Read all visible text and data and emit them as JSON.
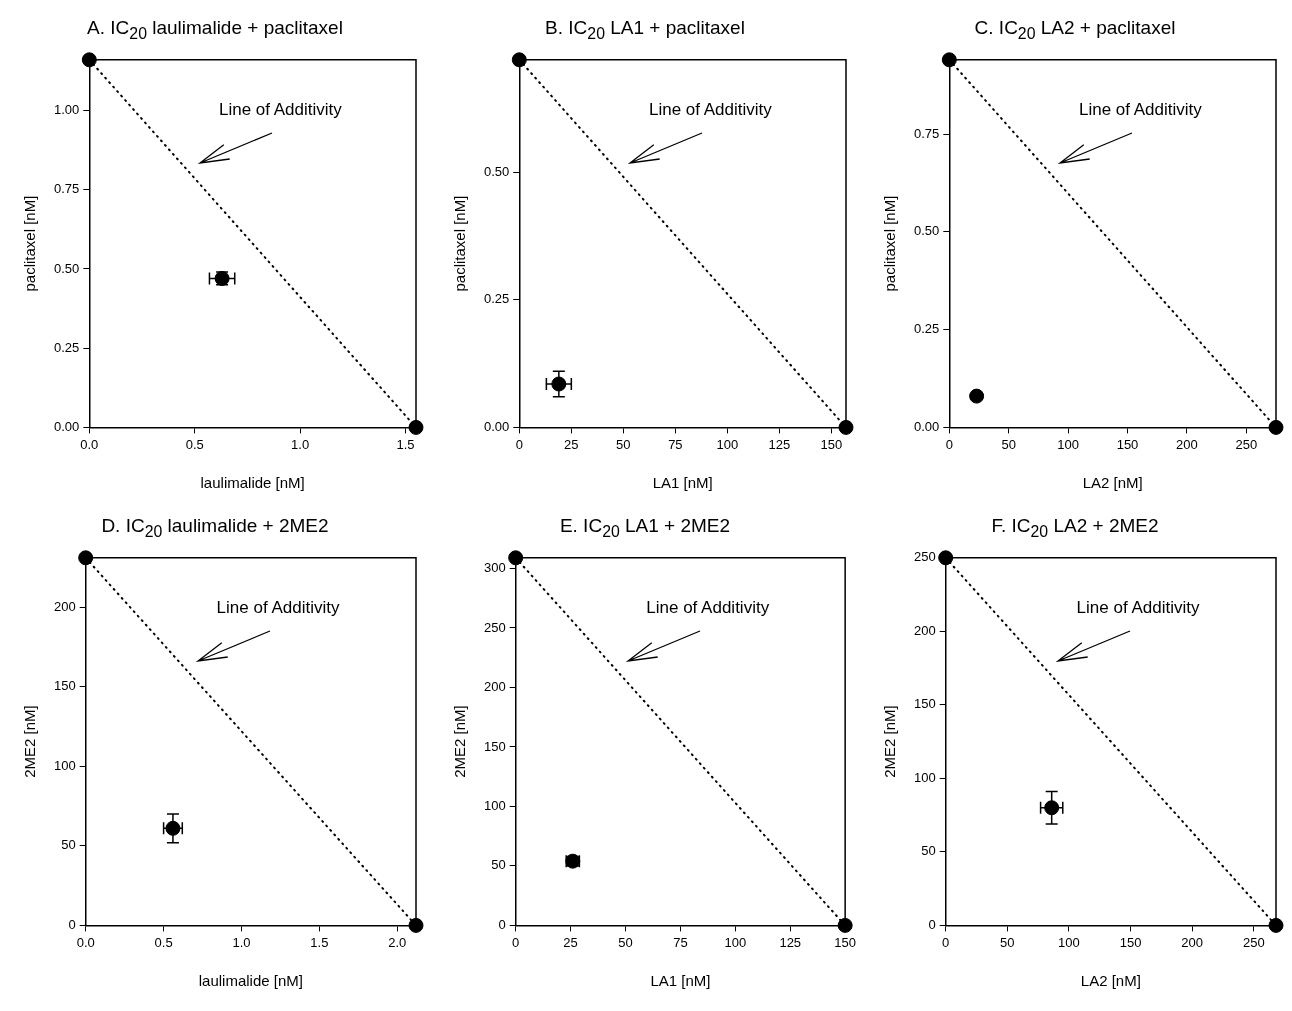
{
  "chart_data": [
    {
      "type": "scatter",
      "title": "A.  IC$_{20}$ laulimalide + paclitaxel",
      "xlabel": "laulimalide [nM]",
      "ylabel": "paclitaxel [nM]",
      "xlim": [
        0,
        1.55
      ],
      "ylim": [
        0,
        1.16
      ],
      "xticks": [
        {
          "value": 0,
          "label": "0.0"
        },
        0.5,
        {
          "value": 1,
          "label": "1.0"
        },
        1.5
      ],
      "yticks": [
        {
          "value": 0,
          "label": "0.00"
        },
        0.25,
        {
          "value": 0.5,
          "label": "0.50"
        },
        0.75,
        {
          "value": 1,
          "label": "1.00"
        }
      ],
      "marker": "circle",
      "annotations": [
        "Line of Additivity"
      ],
      "series": [
        {
          "type": "line",
          "line_style": "dotted",
          "marker": "none",
          "color": "#000000",
          "x": [
            0,
            1.55
          ],
          "values": [
            1.16,
            0
          ]
        },
        {
          "color": "#000000",
          "x": [
            0,
            1.55
          ],
          "values": [
            1.16,
            0
          ]
        },
        {
          "color": "#000000",
          "x": [
            0.63
          ],
          "values": [
            0.47
          ],
          "xerrors": [
            0.06
          ],
          "errors": [
            0.02
          ]
        }
      ]
    },
    {
      "type": "scatter",
      "title": "B.  IC$_{20}$ LA1 + paclitaxel",
      "xlabel": "LA1 [nM]",
      "ylabel": "paclitaxel [nM]",
      "xlim": [
        0,
        157
      ],
      "ylim": [
        0,
        0.72
      ],
      "xticks": [
        0,
        25,
        50,
        75,
        100,
        125,
        150
      ],
      "yticks": [
        {
          "value": 0,
          "label": "0.00"
        },
        0.25,
        {
          "value": 0.5,
          "label": "0.50"
        }
      ],
      "marker": "circle",
      "annotations": [
        "Line of Additivity"
      ],
      "series": [
        {
          "type": "line",
          "line_style": "dotted",
          "marker": "none",
          "color": "#000000",
          "x": [
            0,
            157
          ],
          "values": [
            0.72,
            0
          ]
        },
        {
          "color": "#000000",
          "x": [
            0,
            157
          ],
          "values": [
            0.72,
            0
          ]
        },
        {
          "color": "#000000",
          "x": [
            19
          ],
          "values": [
            0.085
          ],
          "xerrors": [
            6
          ],
          "errors": [
            0.025
          ]
        }
      ]
    },
    {
      "type": "scatter",
      "title": "C.  IC$_{20}$ LA2 + paclitaxel",
      "xlabel": "LA2 [nM]",
      "ylabel": "paclitaxel [nM]",
      "xlim": [
        0,
        275
      ],
      "ylim": [
        0,
        0.94
      ],
      "xticks": [
        0,
        50,
        100,
        150,
        200,
        250
      ],
      "yticks": [
        {
          "value": 0,
          "label": "0.00"
        },
        0.25,
        {
          "value": 0.5,
          "label": "0.50"
        },
        0.75
      ],
      "marker": "circle",
      "annotations": [
        "Line of Additivity"
      ],
      "series": [
        {
          "type": "line",
          "line_style": "dotted",
          "marker": "none",
          "color": "#000000",
          "x": [
            0,
            275
          ],
          "values": [
            0.94,
            0
          ]
        },
        {
          "color": "#000000",
          "x": [
            0,
            275
          ],
          "values": [
            0.94,
            0
          ]
        },
        {
          "color": "#000000",
          "x": [
            23
          ],
          "values": [
            0.08
          ]
        }
      ]
    },
    {
      "type": "scatter",
      "title": "D.  IC$_{20}$ laulimalide + 2ME2",
      "xlabel": "laulimalide [nM]",
      "ylabel": "2ME2 [nM]",
      "xlim": [
        0,
        2.12
      ],
      "ylim": [
        0,
        231
      ],
      "xticks": [
        {
          "value": 0,
          "label": "0.0"
        },
        0.5,
        {
          "value": 1,
          "label": "1.0"
        },
        1.5,
        {
          "value": 2,
          "label": "2.0"
        }
      ],
      "yticks": [
        0,
        50,
        100,
        150,
        200
      ],
      "marker": "circle",
      "annotations": [
        "Line of Additivity"
      ],
      "series": [
        {
          "type": "line",
          "line_style": "dotted",
          "marker": "none",
          "color": "#000000",
          "x": [
            0,
            2.12
          ],
          "values": [
            231,
            0
          ]
        },
        {
          "color": "#000000",
          "x": [
            0,
            2.12
          ],
          "values": [
            231,
            0
          ]
        },
        {
          "color": "#000000",
          "x": [
            0.56
          ],
          "values": [
            61
          ],
          "xerrors": [
            0.06
          ],
          "errors": [
            9
          ]
        }
      ]
    },
    {
      "type": "scatter",
      "title": "E.  IC$_{20}$ LA1 + 2ME2",
      "xlabel": "LA1 [nM]",
      "ylabel": "2ME2 [nM]",
      "xlim": [
        0,
        150
      ],
      "ylim": [
        0,
        309
      ],
      "xticks": [
        0,
        25,
        50,
        75,
        100,
        125,
        150
      ],
      "yticks": [
        0,
        50,
        100,
        150,
        200,
        250,
        300
      ],
      "marker": "circle",
      "annotations": [
        "Line of Additivity"
      ],
      "series": [
        {
          "type": "line",
          "line_style": "dotted",
          "marker": "none",
          "color": "#000000",
          "x": [
            0,
            150
          ],
          "values": [
            309,
            0
          ]
        },
        {
          "color": "#000000",
          "x": [
            0,
            150
          ],
          "values": [
            309,
            0
          ]
        },
        {
          "color": "#000000",
          "x": [
            26
          ],
          "values": [
            54
          ],
          "xerrors": [
            3
          ],
          "errors": [
            4
          ]
        }
      ]
    },
    {
      "type": "scatter",
      "title": "F.  IC$_{20}$ LA2 + 2ME2",
      "xlabel": "LA2 [nM]",
      "ylabel": "2ME2 [nM]",
      "xlim": [
        0,
        268
      ],
      "ylim": [
        0,
        250
      ],
      "xticks": [
        0,
        50,
        100,
        150,
        200,
        250
      ],
      "yticks": [
        0,
        50,
        100,
        150,
        200,
        250
      ],
      "marker": "circle",
      "annotations": [
        "Line of Additivity"
      ],
      "series": [
        {
          "type": "line",
          "line_style": "dotted",
          "marker": "none",
          "color": "#000000",
          "x": [
            0,
            268
          ],
          "values": [
            250,
            0
          ]
        },
        {
          "color": "#000000",
          "x": [
            0,
            268
          ],
          "values": [
            250,
            0
          ]
        },
        {
          "color": "#000000",
          "x": [
            86
          ],
          "values": [
            80
          ],
          "xerrors": [
            9
          ],
          "errors": [
            11
          ]
        }
      ]
    }
  ]
}
